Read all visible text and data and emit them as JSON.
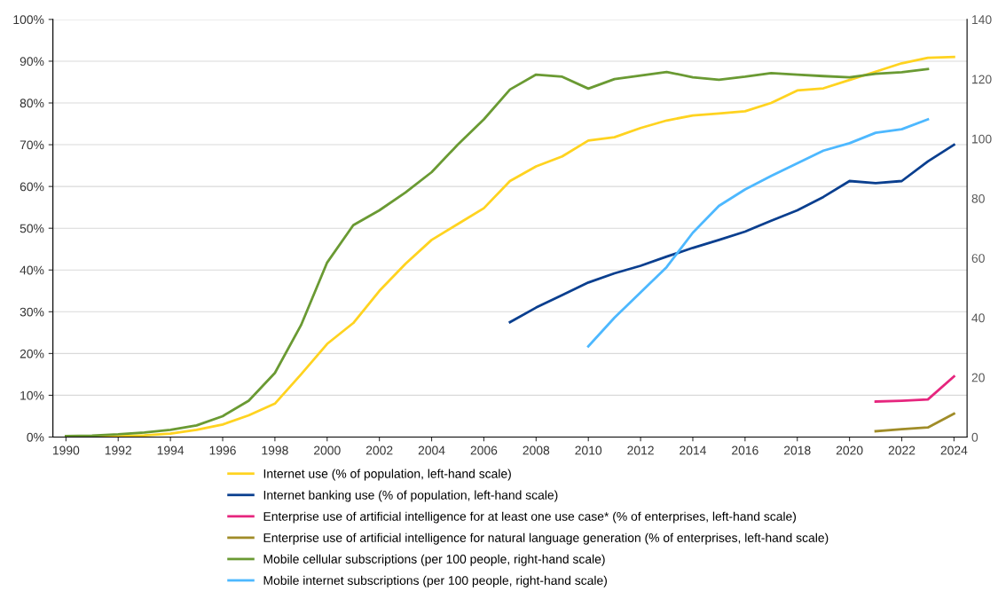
{
  "chart_data": {
    "type": "line",
    "xlim": [
      1989.5,
      2024.5
    ],
    "xticks": [
      1990,
      1992,
      1994,
      1996,
      1998,
      2000,
      2002,
      2004,
      2006,
      2008,
      2010,
      2012,
      2014,
      2016,
      2018,
      2020,
      2022,
      2024
    ],
    "ylim": [
      0,
      100
    ],
    "yticks": [
      {
        "value": 0,
        "label": "0%"
      },
      {
        "value": 10,
        "label": "10%"
      },
      {
        "value": 20,
        "label": "20%"
      },
      {
        "value": 30,
        "label": "30%"
      },
      {
        "value": 40,
        "label": "40%"
      },
      {
        "value": 50,
        "label": "50%"
      },
      {
        "value": 60,
        "label": "60%"
      },
      {
        "value": 70,
        "label": "70%"
      },
      {
        "value": 80,
        "label": "80%"
      },
      {
        "value": 90,
        "label": "90%"
      },
      {
        "value": 100,
        "label": "100%"
      }
    ],
    "y2lim": [
      0,
      140
    ],
    "y2ticks": [
      0,
      20,
      40,
      60,
      80,
      100,
      120,
      140
    ],
    "grid": "y",
    "legend": "bottom",
    "marker": "none",
    "line_style": "solid",
    "series": [
      {
        "name": "Internet use (% of population, left-hand scale)",
        "color": "#ffd320",
        "x": [
          1990,
          1991,
          1992,
          1993,
          1994,
          1995,
          1996,
          1997,
          1998,
          1999,
          2000,
          2001,
          2002,
          2003,
          2004,
          2005,
          2006,
          2007,
          2008,
          2009,
          2010,
          2011,
          2012,
          2013,
          2014,
          2015,
          2016,
          2017,
          2018,
          2019,
          2020,
          2021,
          2022,
          2023,
          2024
        ],
        "values": [
          0,
          0.1,
          0.2,
          0.4,
          0.8,
          1.7,
          3,
          5.2,
          8,
          15,
          22.3,
          27.3,
          35,
          41.5,
          47.2,
          51,
          54.8,
          61.3,
          64.8,
          67.2,
          71,
          71.8,
          74,
          75.8,
          77,
          77.5,
          78,
          80,
          83,
          83.5,
          85.5,
          87.5,
          89.5,
          90.8,
          91
        ]
      },
      {
        "name": "Internet banking use (% of population, left-hand scale)",
        "color": "#0a3f8f",
        "x": [
          2007,
          2008,
          2009,
          2010,
          2011,
          2012,
          2013,
          2014,
          2015,
          2016,
          2017,
          2018,
          2019,
          2020,
          2021,
          2022,
          2023,
          2024
        ],
        "values": [
          27.5,
          31,
          34,
          37,
          39.2,
          41,
          43.2,
          45.3,
          47.2,
          49.2,
          51.8,
          54.3,
          57.5,
          61.3,
          60.8,
          61.3,
          66,
          70
        ]
      },
      {
        "name": "Enterprise use of artificial intelligence for at least one use case* (% of enterprises, left-hand scale)",
        "color": "#e6267e",
        "x": [
          2021,
          2022,
          2023,
          2024
        ],
        "values": [
          8.5,
          8.7,
          9,
          14.5
        ]
      },
      {
        "name": "Enterprise use of artificial intelligence for natural language generation (% of enterprises, left-hand scale)",
        "color": "#a08c28",
        "x": [
          2021,
          2022,
          2023,
          2024
        ],
        "values": [
          1.4,
          1.9,
          2.3,
          5.6
        ]
      },
      {
        "name": "Mobile cellular subscriptions (per 100 people, right-hand scale)",
        "color": "#6a9a33",
        "axis": "y2",
        "x": [
          1990,
          1991,
          1992,
          1993,
          1994,
          1995,
          1996,
          1997,
          1998,
          1999,
          2000,
          2001,
          2002,
          2003,
          2004,
          2005,
          2006,
          2007,
          2008,
          2009,
          2010,
          2011,
          2012,
          2013,
          2014,
          2015,
          2016,
          2017,
          2018,
          2019,
          2020,
          2021,
          2022,
          2023
        ],
        "values": [
          0.3,
          0.5,
          0.9,
          1.5,
          2.4,
          3.9,
          7,
          12.2,
          21.5,
          37.5,
          58.5,
          71,
          76,
          82,
          88.8,
          98,
          106.5,
          116.5,
          121.5,
          120.8,
          116.8,
          120,
          121.2,
          122.4,
          120.6,
          119.8,
          120.8,
          122,
          121.5,
          121,
          120.6,
          121.8,
          122.3,
          123.4
        ]
      },
      {
        "name": "Mobile internet subscriptions (per 100 people, right-hand scale)",
        "color": "#4db8ff",
        "axis": "y2",
        "x": [
          2010,
          2011,
          2012,
          2013,
          2014,
          2015,
          2016,
          2017,
          2018,
          2019,
          2020,
          2021,
          2022,
          2023
        ],
        "values": [
          30.4,
          40,
          48.5,
          57,
          68.5,
          77.5,
          83,
          87.5,
          91.8,
          96,
          98.5,
          102,
          103.2,
          106.5
        ]
      }
    ]
  }
}
